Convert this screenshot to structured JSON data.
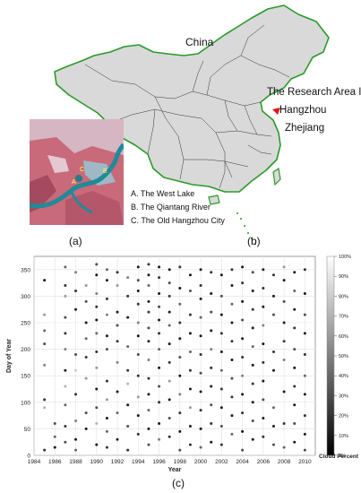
{
  "map": {
    "country_label": "China",
    "research_area_lines": [
      "The Research Area In",
      "Hangzhou"
    ],
    "province_label": "Zhejiang",
    "list_items": [
      "A. The West Lake",
      "B. The Qiantang River",
      "C. The Old Hangzhou City"
    ],
    "panel_a": "(a)",
    "panel_b": "(b)",
    "markers": [
      "A",
      "B",
      "C"
    ]
  },
  "panel_c": "(c)",
  "chart_data": {
    "type": "scatter",
    "xlabel": "Year",
    "ylabel": "Day of Year",
    "colorbar_label": "Cloud Percent",
    "xlim": [
      1984,
      2011
    ],
    "ylim": [
      0,
      375
    ],
    "xticks": [
      1984,
      1986,
      1988,
      1990,
      1992,
      1994,
      1996,
      1998,
      2000,
      2002,
      2004,
      2006,
      2008,
      2010
    ],
    "yticks": [
      0,
      50,
      100,
      150,
      200,
      250,
      300,
      350
    ],
    "colorbar_ticks": [
      "0%",
      "10%",
      "20%",
      "30%",
      "40%",
      "50%",
      "60%",
      "70%",
      "80%",
      "90%",
      "100%"
    ],
    "grid": true,
    "colormap": [
      "#000000",
      "#ffffff"
    ],
    "points_note_values_are_cloud_percent": true,
    "points": [
      [
        1985,
        330,
        10
      ],
      [
        1985,
        265,
        60
      ],
      [
        1985,
        235,
        40
      ],
      [
        1985,
        210,
        30
      ],
      [
        1985,
        170,
        50
      ],
      [
        1985,
        105,
        20
      ],
      [
        1985,
        90,
        70
      ],
      [
        1985,
        10,
        20
      ],
      [
        1986,
        60,
        30
      ],
      [
        1986,
        35,
        40
      ],
      [
        1986,
        15,
        10
      ],
      [
        1987,
        355,
        40
      ],
      [
        1987,
        320,
        20
      ],
      [
        1987,
        300,
        60
      ],
      [
        1987,
        260,
        30
      ],
      [
        1987,
        230,
        20
      ],
      [
        1987,
        200,
        50
      ],
      [
        1987,
        160,
        10
      ],
      [
        1987,
        130,
        70
      ],
      [
        1987,
        95,
        40
      ],
      [
        1987,
        55,
        20
      ],
      [
        1987,
        25,
        30
      ],
      [
        1988,
        345,
        50
      ],
      [
        1988,
        310,
        20
      ],
      [
        1988,
        275,
        10
      ],
      [
        1988,
        190,
        30
      ],
      [
        1988,
        160,
        80
      ],
      [
        1988,
        115,
        20
      ],
      [
        1988,
        65,
        50
      ],
      [
        1988,
        30,
        10
      ],
      [
        1988,
        10,
        40
      ],
      [
        1989,
        320,
        60
      ],
      [
        1989,
        290,
        30
      ],
      [
        1989,
        250,
        10
      ],
      [
        1989,
        220,
        40
      ],
      [
        1989,
        185,
        20
      ],
      [
        1989,
        145,
        60
      ],
      [
        1989,
        80,
        30
      ],
      [
        1989,
        50,
        10
      ],
      [
        1990,
        360,
        30
      ],
      [
        1990,
        340,
        10
      ],
      [
        1990,
        305,
        50
      ],
      [
        1990,
        280,
        20
      ],
      [
        1990,
        255,
        10
      ],
      [
        1990,
        230,
        40
      ],
      [
        1990,
        195,
        20
      ],
      [
        1990,
        165,
        60
      ],
      [
        1990,
        125,
        10
      ],
      [
        1990,
        90,
        30
      ],
      [
        1990,
        60,
        70
      ],
      [
        1990,
        20,
        10
      ],
      [
        1991,
        350,
        40
      ],
      [
        1991,
        330,
        10
      ],
      [
        1991,
        295,
        20
      ],
      [
        1991,
        265,
        50
      ],
      [
        1991,
        225,
        10
      ],
      [
        1991,
        200,
        30
      ],
      [
        1991,
        140,
        20
      ],
      [
        1991,
        105,
        60
      ],
      [
        1991,
        70,
        10
      ],
      [
        1991,
        45,
        40
      ],
      [
        1991,
        15,
        20
      ],
      [
        1992,
        345,
        20
      ],
      [
        1992,
        320,
        60
      ],
      [
        1992,
        270,
        10
      ],
      [
        1992,
        245,
        30
      ],
      [
        1992,
        215,
        20
      ],
      [
        1992,
        175,
        50
      ],
      [
        1992,
        120,
        10
      ],
      [
        1992,
        80,
        40
      ],
      [
        1992,
        30,
        10
      ],
      [
        1993,
        335,
        50
      ],
      [
        1993,
        300,
        20
      ],
      [
        1993,
        260,
        10
      ],
      [
        1993,
        205,
        40
      ],
      [
        1993,
        160,
        20
      ],
      [
        1993,
        135,
        70
      ],
      [
        1993,
        95,
        10
      ],
      [
        1993,
        55,
        30
      ],
      [
        1993,
        10,
        20
      ],
      [
        1994,
        355,
        10
      ],
      [
        1994,
        330,
        30
      ],
      [
        1994,
        310,
        10
      ],
      [
        1994,
        285,
        20
      ],
      [
        1994,
        250,
        50
      ],
      [
        1994,
        225,
        10
      ],
      [
        1994,
        190,
        30
      ],
      [
        1994,
        150,
        20
      ],
      [
        1994,
        110,
        60
      ],
      [
        1994,
        75,
        10
      ],
      [
        1994,
        40,
        20
      ],
      [
        1995,
        360,
        20
      ],
      [
        1995,
        340,
        10
      ],
      [
        1995,
        320,
        40
      ],
      [
        1995,
        290,
        10
      ],
      [
        1995,
        270,
        20
      ],
      [
        1995,
        240,
        30
      ],
      [
        1995,
        215,
        10
      ],
      [
        1995,
        180,
        50
      ],
      [
        1995,
        145,
        20
      ],
      [
        1995,
        115,
        10
      ],
      [
        1995,
        85,
        40
      ],
      [
        1995,
        50,
        10
      ],
      [
        1995,
        20,
        30
      ],
      [
        1996,
        355,
        10
      ],
      [
        1996,
        335,
        20
      ],
      [
        1996,
        305,
        10
      ],
      [
        1996,
        280,
        30
      ],
      [
        1996,
        255,
        10
      ],
      [
        1996,
        230,
        20
      ],
      [
        1996,
        200,
        40
      ],
      [
        1996,
        165,
        10
      ],
      [
        1996,
        130,
        30
      ],
      [
        1996,
        100,
        20
      ],
      [
        1996,
        60,
        10
      ],
      [
        1996,
        30,
        50
      ],
      [
        1997,
        350,
        10
      ],
      [
        1997,
        325,
        30
      ],
      [
        1997,
        300,
        20
      ],
      [
        1997,
        270,
        10
      ],
      [
        1997,
        245,
        40
      ],
      [
        1997,
        210,
        10
      ],
      [
        1997,
        175,
        20
      ],
      [
        1997,
        140,
        60
      ],
      [
        1997,
        105,
        10
      ],
      [
        1997,
        70,
        30
      ],
      [
        1997,
        35,
        20
      ],
      [
        1998,
        355,
        20
      ],
      [
        1998,
        315,
        10
      ],
      [
        1998,
        285,
        40
      ],
      [
        1998,
        250,
        20
      ],
      [
        1998,
        220,
        10
      ],
      [
        1998,
        185,
        30
      ],
      [
        1998,
        150,
        10
      ],
      [
        1998,
        115,
        50
      ],
      [
        1998,
        80,
        20
      ],
      [
        1998,
        45,
        10
      ],
      [
        1998,
        10,
        30
      ],
      [
        1999,
        340,
        10
      ],
      [
        1999,
        310,
        30
      ],
      [
        1999,
        265,
        20
      ],
      [
        1999,
        230,
        10
      ],
      [
        1999,
        195,
        40
      ],
      [
        1999,
        160,
        20
      ],
      [
        1999,
        125,
        10
      ],
      [
        1999,
        90,
        60
      ],
      [
        1999,
        55,
        10
      ],
      [
        1999,
        20,
        20
      ],
      [
        2000,
        350,
        10
      ],
      [
        2000,
        320,
        20
      ],
      [
        2000,
        295,
        10
      ],
      [
        2000,
        260,
        40
      ],
      [
        2000,
        225,
        10
      ],
      [
        2000,
        190,
        20
      ],
      [
        2000,
        155,
        30
      ],
      [
        2000,
        120,
        10
      ],
      [
        2000,
        85,
        20
      ],
      [
        2000,
        50,
        10
      ],
      [
        2000,
        15,
        40
      ],
      [
        2001,
        345,
        20
      ],
      [
        2001,
        305,
        10
      ],
      [
        2001,
        270,
        30
      ],
      [
        2001,
        235,
        10
      ],
      [
        2001,
        200,
        50
      ],
      [
        2001,
        165,
        20
      ],
      [
        2001,
        130,
        10
      ],
      [
        2001,
        95,
        30
      ],
      [
        2001,
        60,
        20
      ],
      [
        2001,
        25,
        10
      ],
      [
        2002,
        340,
        10
      ],
      [
        2002,
        300,
        30
      ],
      [
        2002,
        265,
        10
      ],
      [
        2002,
        230,
        20
      ],
      [
        2002,
        195,
        10
      ],
      [
        2002,
        160,
        40
      ],
      [
        2002,
        125,
        20
      ],
      [
        2002,
        90,
        10
      ],
      [
        2002,
        55,
        30
      ],
      [
        2002,
        20,
        20
      ],
      [
        2003,
        350,
        20
      ],
      [
        2003,
        320,
        10
      ],
      [
        2003,
        285,
        40
      ],
      [
        2003,
        250,
        10
      ],
      [
        2003,
        215,
        20
      ],
      [
        2003,
        180,
        10
      ],
      [
        2003,
        145,
        30
      ],
      [
        2003,
        110,
        20
      ],
      [
        2003,
        75,
        10
      ],
      [
        2003,
        40,
        40
      ],
      [
        2004,
        355,
        10
      ],
      [
        2004,
        325,
        20
      ],
      [
        2004,
        290,
        10
      ],
      [
        2004,
        255,
        30
      ],
      [
        2004,
        220,
        10
      ],
      [
        2004,
        185,
        20
      ],
      [
        2004,
        150,
        50
      ],
      [
        2004,
        115,
        10
      ],
      [
        2004,
        80,
        20
      ],
      [
        2004,
        45,
        10
      ],
      [
        2004,
        10,
        30
      ],
      [
        2005,
        345,
        30
      ],
      [
        2005,
        310,
        10
      ],
      [
        2005,
        275,
        20
      ],
      [
        2005,
        240,
        10
      ],
      [
        2005,
        205,
        40
      ],
      [
        2005,
        170,
        10
      ],
      [
        2005,
        135,
        20
      ],
      [
        2005,
        100,
        10
      ],
      [
        2005,
        65,
        30
      ],
      [
        2005,
        30,
        10
      ],
      [
        2006,
        350,
        10
      ],
      [
        2006,
        315,
        20
      ],
      [
        2006,
        280,
        10
      ],
      [
        2006,
        245,
        50
      ],
      [
        2006,
        210,
        10
      ],
      [
        2006,
        175,
        20
      ],
      [
        2006,
        140,
        10
      ],
      [
        2006,
        105,
        30
      ],
      [
        2006,
        70,
        10
      ],
      [
        2006,
        35,
        20
      ],
      [
        2007,
        340,
        20
      ],
      [
        2007,
        300,
        10
      ],
      [
        2007,
        265,
        30
      ],
      [
        2007,
        195,
        20
      ],
      [
        2007,
        160,
        10
      ],
      [
        2007,
        90,
        40
      ],
      [
        2007,
        55,
        10
      ],
      [
        2007,
        20,
        30
      ],
      [
        2008,
        355,
        60
      ],
      [
        2008,
        330,
        10
      ],
      [
        2008,
        290,
        30
      ],
      [
        2008,
        250,
        10
      ],
      [
        2008,
        215,
        20
      ],
      [
        2008,
        180,
        50
      ],
      [
        2008,
        120,
        10
      ],
      [
        2008,
        60,
        20
      ],
      [
        2008,
        15,
        40
      ],
      [
        2009,
        345,
        10
      ],
      [
        2009,
        310,
        40
      ],
      [
        2009,
        275,
        10
      ],
      [
        2009,
        240,
        20
      ],
      [
        2009,
        200,
        30
      ],
      [
        2009,
        165,
        10
      ],
      [
        2009,
        130,
        20
      ],
      [
        2009,
        95,
        10
      ],
      [
        2009,
        60,
        30
      ],
      [
        2009,
        25,
        10
      ],
      [
        2010,
        350,
        20
      ],
      [
        2010,
        305,
        10
      ],
      [
        2010,
        265,
        30
      ],
      [
        2010,
        230,
        10
      ],
      [
        2010,
        190,
        20
      ],
      [
        2010,
        150,
        40
      ],
      [
        2010,
        115,
        10
      ],
      [
        2010,
        75,
        20
      ],
      [
        2010,
        40,
        10
      ],
      [
        2010,
        10,
        30
      ]
    ]
  }
}
